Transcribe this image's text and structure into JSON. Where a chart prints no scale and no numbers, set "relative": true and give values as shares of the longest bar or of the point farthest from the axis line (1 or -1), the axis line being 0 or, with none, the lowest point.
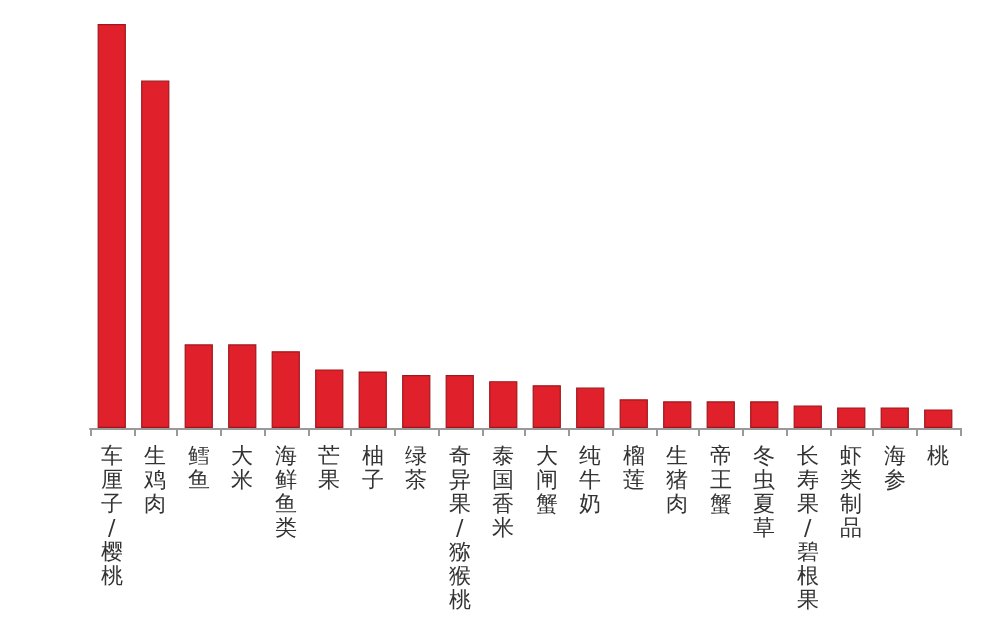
{
  "chart_data": {
    "type": "bar",
    "relative": true,
    "color": "#e0202a",
    "categories": [
      "车厘子/樱桃",
      "生鸡肉",
      "鳕鱼",
      "大米",
      "海鲜鱼类",
      "芒果",
      "柚子",
      "绿茶",
      "奇异果/猕猴桃",
      "泰国香米",
      "大闸蟹",
      "纯牛奶",
      "榴莲",
      "生猪肉",
      "帝王蟹",
      "冬虫夏草",
      "长寿果/碧根果",
      "虾类制品",
      "海参",
      "桃"
    ],
    "values": [
      1,
      0.86,
      0.207,
      0.207,
      0.19,
      0.145,
      0.14,
      0.131,
      0.131,
      0.116,
      0.106,
      0.1,
      0.071,
      0.066,
      0.066,
      0.066,
      0.056,
      0.051,
      0.051,
      0.046
    ]
  }
}
